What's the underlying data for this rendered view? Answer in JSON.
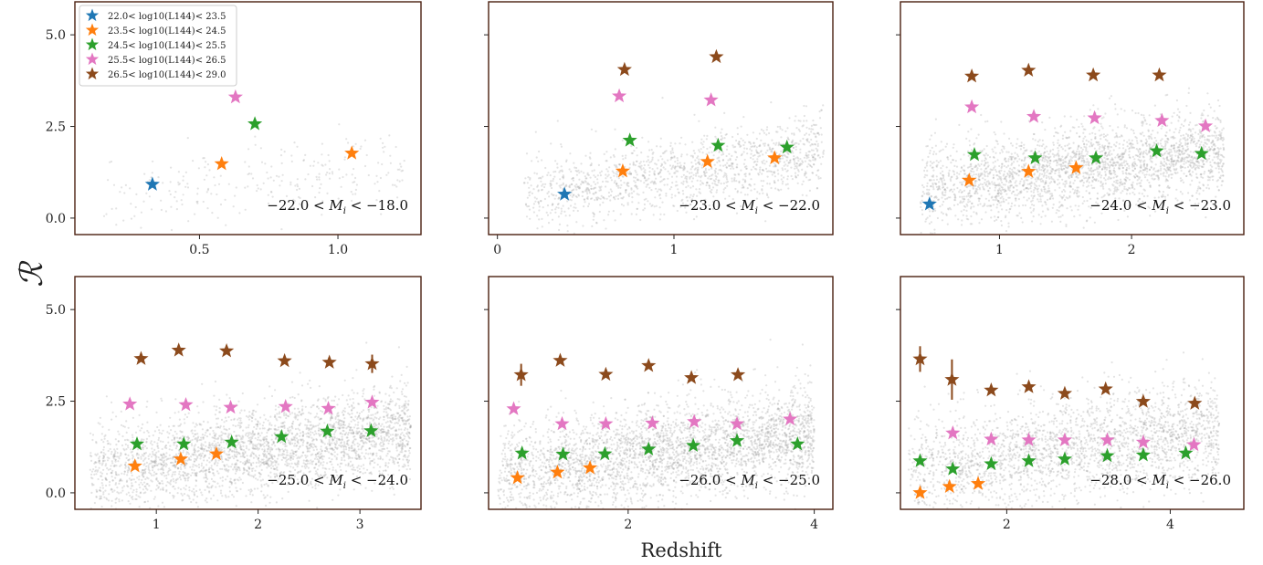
{
  "figure": {
    "xlabel": "Redshift",
    "ylabel": "ℛ"
  },
  "legend": {
    "entries": [
      {
        "label": "22.0< log10(L144)< 23.5",
        "color": "#1f77b4"
      },
      {
        "label": "23.5< log10(L144)< 24.5",
        "color": "#ff7f0e"
      },
      {
        "label": "24.5< log10(L144)< 25.5",
        "color": "#2ca02c"
      },
      {
        "label": "25.5< log10(L144)< 26.5",
        "color": "#e377c2"
      },
      {
        "label": "26.5< log10(L144)< 29.0",
        "color": "#8c4a1c"
      }
    ]
  },
  "colors": {
    "frame": "#4a1f0f",
    "background_points": "#9a9a9a"
  },
  "chart_data": [
    {
      "type": "scatter",
      "annotation": "−22.0 < M_i < −18.0",
      "xlim": [
        0.05,
        1.3
      ],
      "ylim": [
        -0.45,
        5.9
      ],
      "xticks": [
        0.5,
        1.0
      ],
      "xtick_labels": [
        "0.5",
        "1.0"
      ],
      "yticks": [
        0.0,
        2.5,
        5.0
      ],
      "ytick_labels": [
        "0.0",
        "2.5",
        "5.0"
      ],
      "show_yticklabels": true,
      "background": {
        "n": 260,
        "x_range": [
          0.15,
          1.25
        ],
        "y_start": 0.5,
        "y_slope": 0.9,
        "spread": 0.6
      },
      "series": [
        {
          "bin": 0,
          "points": [
            {
              "x": 0.33,
              "y": 0.92,
              "err": 0.0
            }
          ]
        },
        {
          "bin": 1,
          "points": [
            {
              "x": 0.58,
              "y": 1.48,
              "err": 0.0
            },
            {
              "x": 1.05,
              "y": 1.77,
              "err": 0.0
            }
          ]
        },
        {
          "bin": 2,
          "points": [
            {
              "x": 0.7,
              "y": 2.57,
              "err": 0.0
            }
          ]
        },
        {
          "bin": 3,
          "points": [
            {
              "x": 0.63,
              "y": 3.3,
              "err": 0.0
            }
          ]
        }
      ],
      "show_legend": true
    },
    {
      "type": "scatter",
      "annotation": "−23.0 < M_i < −22.0",
      "xlim": [
        -0.05,
        1.9
      ],
      "ylim": [
        -0.45,
        5.9
      ],
      "xticks": [
        0,
        1
      ],
      "xtick_labels": [
        "0",
        "1"
      ],
      "yticks": [
        0.0,
        2.5,
        5.0
      ],
      "ytick_labels": [
        "0.0",
        "2.5",
        "5.0"
      ],
      "show_yticklabels": false,
      "background": {
        "n": 1400,
        "x_range": [
          0.15,
          1.85
        ],
        "y_start": 0.6,
        "y_slope": 0.7,
        "spread": 0.65
      },
      "series": [
        {
          "bin": 0,
          "points": [
            {
              "x": 0.38,
              "y": 0.65,
              "err": 0.0
            }
          ]
        },
        {
          "bin": 1,
          "points": [
            {
              "x": 0.71,
              "y": 1.28,
              "err": 0.0
            },
            {
              "x": 1.19,
              "y": 1.54,
              "err": 0.0
            },
            {
              "x": 1.57,
              "y": 1.64,
              "err": 0.0
            }
          ]
        },
        {
          "bin": 2,
          "points": [
            {
              "x": 0.75,
              "y": 2.12,
              "err": 0.0
            },
            {
              "x": 1.25,
              "y": 1.98,
              "err": 0.0
            },
            {
              "x": 1.64,
              "y": 1.93,
              "err": 0.0
            }
          ]
        },
        {
          "bin": 3,
          "points": [
            {
              "x": 0.69,
              "y": 3.33,
              "err": 0.0
            },
            {
              "x": 1.21,
              "y": 3.22,
              "err": 0.0
            }
          ]
        },
        {
          "bin": 4,
          "points": [
            {
              "x": 0.72,
              "y": 4.05,
              "err": 0.0
            },
            {
              "x": 1.24,
              "y": 4.4,
              "err": 0.0
            }
          ]
        }
      ],
      "show_legend": false
    },
    {
      "type": "scatter",
      "annotation": "−24.0 < M_i < −23.0",
      "xlim": [
        0.25,
        2.85
      ],
      "ylim": [
        -0.45,
        5.9
      ],
      "xticks": [
        1,
        2
      ],
      "xtick_labels": [
        "1",
        "2"
      ],
      "yticks": [
        0.0,
        2.5,
        5.0
      ],
      "ytick_labels": [
        "0.0",
        "2.5",
        "5.0"
      ],
      "show_yticklabels": false,
      "background": {
        "n": 2600,
        "x_range": [
          0.4,
          2.7
        ],
        "y_start": 0.8,
        "y_slope": 0.45,
        "spread": 0.7
      },
      "series": [
        {
          "bin": 0,
          "points": [
            {
              "x": 0.47,
              "y": 0.38,
              "err": 0.0
            }
          ]
        },
        {
          "bin": 1,
          "points": [
            {
              "x": 0.77,
              "y": 1.03,
              "err": 0.0
            },
            {
              "x": 1.22,
              "y": 1.27,
              "err": 0.0
            },
            {
              "x": 1.58,
              "y": 1.37,
              "err": 0.0
            }
          ]
        },
        {
          "bin": 2,
          "points": [
            {
              "x": 0.81,
              "y": 1.73,
              "err": 0.0
            },
            {
              "x": 1.27,
              "y": 1.64,
              "err": 0.0
            },
            {
              "x": 1.73,
              "y": 1.64,
              "err": 0.0
            },
            {
              "x": 2.19,
              "y": 1.83,
              "err": 0.0
            },
            {
              "x": 2.53,
              "y": 1.76,
              "err": 0.0
            }
          ]
        },
        {
          "bin": 3,
          "points": [
            {
              "x": 0.79,
              "y": 3.03,
              "err": 0.0
            },
            {
              "x": 1.26,
              "y": 2.77,
              "err": 0.0
            },
            {
              "x": 1.72,
              "y": 2.73,
              "err": 0.0
            },
            {
              "x": 2.23,
              "y": 2.66,
              "err": 0.0
            },
            {
              "x": 2.56,
              "y": 2.51,
              "err": 0.0
            }
          ]
        },
        {
          "bin": 4,
          "points": [
            {
              "x": 0.79,
              "y": 3.87,
              "err": 0.0
            },
            {
              "x": 1.22,
              "y": 4.03,
              "err": 0.0
            },
            {
              "x": 1.71,
              "y": 3.9,
              "err": 0.0
            },
            {
              "x": 2.21,
              "y": 3.9,
              "err": 0.0
            }
          ]
        }
      ],
      "show_legend": false
    },
    {
      "type": "scatter",
      "annotation": "−25.0 < M_i < −24.0",
      "xlim": [
        0.2,
        3.6
      ],
      "ylim": [
        -0.45,
        5.9
      ],
      "xticks": [
        1,
        2,
        3
      ],
      "xtick_labels": [
        "1",
        "2",
        "3"
      ],
      "yticks": [
        0.0,
        2.5,
        5.0
      ],
      "ytick_labels": [
        "0.0",
        "2.5",
        "5.0"
      ],
      "show_yticklabels": true,
      "background": {
        "n": 3000,
        "x_range": [
          0.35,
          3.5
        ],
        "y_start": 0.6,
        "y_slope": 0.35,
        "spread": 0.75
      },
      "series": [
        {
          "bin": 1,
          "points": [
            {
              "x": 0.79,
              "y": 0.73,
              "err": 0.0
            },
            {
              "x": 1.24,
              "y": 0.92,
              "err": 0.0
            },
            {
              "x": 1.59,
              "y": 1.06,
              "err": 0.0
            }
          ]
        },
        {
          "bin": 2,
          "points": [
            {
              "x": 0.81,
              "y": 1.33,
              "err": 0.0
            },
            {
              "x": 1.27,
              "y": 1.33,
              "err": 0.0
            },
            {
              "x": 1.74,
              "y": 1.38,
              "err": 0.0
            },
            {
              "x": 2.23,
              "y": 1.53,
              "err": 0.0
            },
            {
              "x": 2.68,
              "y": 1.68,
              "err": 0.0
            },
            {
              "x": 3.11,
              "y": 1.69,
              "err": 0.0
            }
          ]
        },
        {
          "bin": 3,
          "points": [
            {
              "x": 0.74,
              "y": 2.42,
              "err": 0.0
            },
            {
              "x": 1.29,
              "y": 2.4,
              "err": 0.0
            },
            {
              "x": 1.73,
              "y": 2.33,
              "err": 0.0
            },
            {
              "x": 2.27,
              "y": 2.35,
              "err": 0.0
            },
            {
              "x": 2.69,
              "y": 2.3,
              "err": 0.0
            },
            {
              "x": 3.12,
              "y": 2.47,
              "err": 0.0
            }
          ]
        },
        {
          "bin": 4,
          "points": [
            {
              "x": 0.85,
              "y": 3.66,
              "err": 0.0
            },
            {
              "x": 1.22,
              "y": 3.89,
              "err": 0.0
            },
            {
              "x": 1.69,
              "y": 3.87,
              "err": 0.0
            },
            {
              "x": 2.26,
              "y": 3.6,
              "err": 0.0
            },
            {
              "x": 2.7,
              "y": 3.56,
              "err": 0.0
            },
            {
              "x": 3.12,
              "y": 3.52,
              "err": 0.25
            }
          ]
        }
      ],
      "show_legend": false
    },
    {
      "type": "scatter",
      "annotation": "−26.0 < M_i < −25.0",
      "xlim": [
        0.5,
        4.2
      ],
      "ylim": [
        -0.45,
        5.9
      ],
      "xticks": [
        2,
        4
      ],
      "xtick_labels": [
        "2",
        "4"
      ],
      "yticks": [
        0.0,
        2.5,
        5.0
      ],
      "ytick_labels": [
        "0.0",
        "2.5",
        "5.0"
      ],
      "show_yticklabels": false,
      "background": {
        "n": 3200,
        "x_range": [
          0.6,
          4.0
        ],
        "y_start": 0.5,
        "y_slope": 0.33,
        "spread": 0.8
      },
      "series": [
        {
          "bin": 1,
          "points": [
            {
              "x": 0.81,
              "y": 0.41,
              "err": 0.0
            },
            {
              "x": 1.24,
              "y": 0.56,
              "err": 0.0
            },
            {
              "x": 1.59,
              "y": 0.68,
              "err": 0.0
            }
          ]
        },
        {
          "bin": 2,
          "points": [
            {
              "x": 0.86,
              "y": 1.08,
              "err": 0.0
            },
            {
              "x": 1.3,
              "y": 1.05,
              "err": 0.0
            },
            {
              "x": 1.75,
              "y": 1.06,
              "err": 0.0
            },
            {
              "x": 2.22,
              "y": 1.19,
              "err": 0.0
            },
            {
              "x": 2.7,
              "y": 1.29,
              "err": 0.0
            },
            {
              "x": 3.17,
              "y": 1.42,
              "err": 0.0
            },
            {
              "x": 3.82,
              "y": 1.33,
              "err": 0.0
            }
          ]
        },
        {
          "bin": 3,
          "points": [
            {
              "x": 0.77,
              "y": 2.29,
              "err": 0.0
            },
            {
              "x": 1.29,
              "y": 1.88,
              "err": 0.0
            },
            {
              "x": 1.76,
              "y": 1.88,
              "err": 0.0
            },
            {
              "x": 2.26,
              "y": 1.9,
              "err": 0.0
            },
            {
              "x": 2.71,
              "y": 1.94,
              "err": 0.0
            },
            {
              "x": 3.17,
              "y": 1.88,
              "err": 0.0
            },
            {
              "x": 3.74,
              "y": 2.01,
              "err": 0.0
            }
          ]
        },
        {
          "bin": 4,
          "points": [
            {
              "x": 0.85,
              "y": 3.22,
              "err": 0.3
            },
            {
              "x": 1.27,
              "y": 3.61,
              "err": 0.0
            },
            {
              "x": 1.76,
              "y": 3.23,
              "err": 0.0
            },
            {
              "x": 2.22,
              "y": 3.47,
              "err": 0.0
            },
            {
              "x": 2.68,
              "y": 3.14,
              "err": 0.0
            },
            {
              "x": 3.18,
              "y": 3.22,
              "err": 0.0
            }
          ]
        }
      ],
      "show_legend": false
    },
    {
      "type": "scatter",
      "annotation": "−28.0 < M_i < −26.0",
      "xlim": [
        0.7,
        4.9
      ],
      "ylim": [
        -0.45,
        5.9
      ],
      "xticks": [
        2,
        4
      ],
      "xtick_labels": [
        "2",
        "4"
      ],
      "yticks": [
        0.0,
        2.5,
        5.0
      ],
      "ytick_labels": [
        "0.0",
        "2.5",
        "5.0"
      ],
      "show_yticklabels": false,
      "background": {
        "n": 2400,
        "x_range": [
          0.8,
          4.6
        ],
        "y_start": 0.6,
        "y_slope": 0.3,
        "spread": 0.85
      },
      "series": [
        {
          "bin": 1,
          "points": [
            {
              "x": 0.94,
              "y": 0.0,
              "err": 0.0
            },
            {
              "x": 1.3,
              "y": 0.17,
              "err": 0.0
            },
            {
              "x": 1.65,
              "y": 0.25,
              "err": 0.0
            }
          ]
        },
        {
          "bin": 2,
          "points": [
            {
              "x": 0.94,
              "y": 0.87,
              "err": 0.0
            },
            {
              "x": 1.34,
              "y": 0.65,
              "err": 0.0
            },
            {
              "x": 1.81,
              "y": 0.79,
              "err": 0.0
            },
            {
              "x": 2.27,
              "y": 0.87,
              "err": 0.0
            },
            {
              "x": 2.71,
              "y": 0.92,
              "err": 0.0
            },
            {
              "x": 3.23,
              "y": 1.01,
              "err": 0.0
            },
            {
              "x": 3.67,
              "y": 1.03,
              "err": 0.0
            },
            {
              "x": 4.19,
              "y": 1.08,
              "err": 0.0
            }
          ]
        },
        {
          "bin": 3,
          "points": [
            {
              "x": 1.34,
              "y": 1.63,
              "err": 0.0
            },
            {
              "x": 1.81,
              "y": 1.46,
              "err": 0.0
            },
            {
              "x": 2.27,
              "y": 1.44,
              "err": 0.0
            },
            {
              "x": 2.71,
              "y": 1.44,
              "err": 0.0
            },
            {
              "x": 3.23,
              "y": 1.44,
              "err": 0.0
            },
            {
              "x": 3.67,
              "y": 1.38,
              "err": 0.0
            },
            {
              "x": 4.29,
              "y": 1.31,
              "err": 0.0
            }
          ]
        },
        {
          "bin": 4,
          "points": [
            {
              "x": 0.94,
              "y": 3.65,
              "err": 0.35
            },
            {
              "x": 1.33,
              "y": 3.09,
              "err": 0.55
            },
            {
              "x": 1.81,
              "y": 2.8,
              "err": 0.0
            },
            {
              "x": 2.27,
              "y": 2.89,
              "err": 0.0
            },
            {
              "x": 2.71,
              "y": 2.71,
              "err": 0.0
            },
            {
              "x": 3.21,
              "y": 2.83,
              "err": 0.0
            },
            {
              "x": 3.67,
              "y": 2.49,
              "err": 0.0
            },
            {
              "x": 4.3,
              "y": 2.44,
              "err": 0.0
            }
          ]
        }
      ],
      "show_legend": false
    }
  ]
}
